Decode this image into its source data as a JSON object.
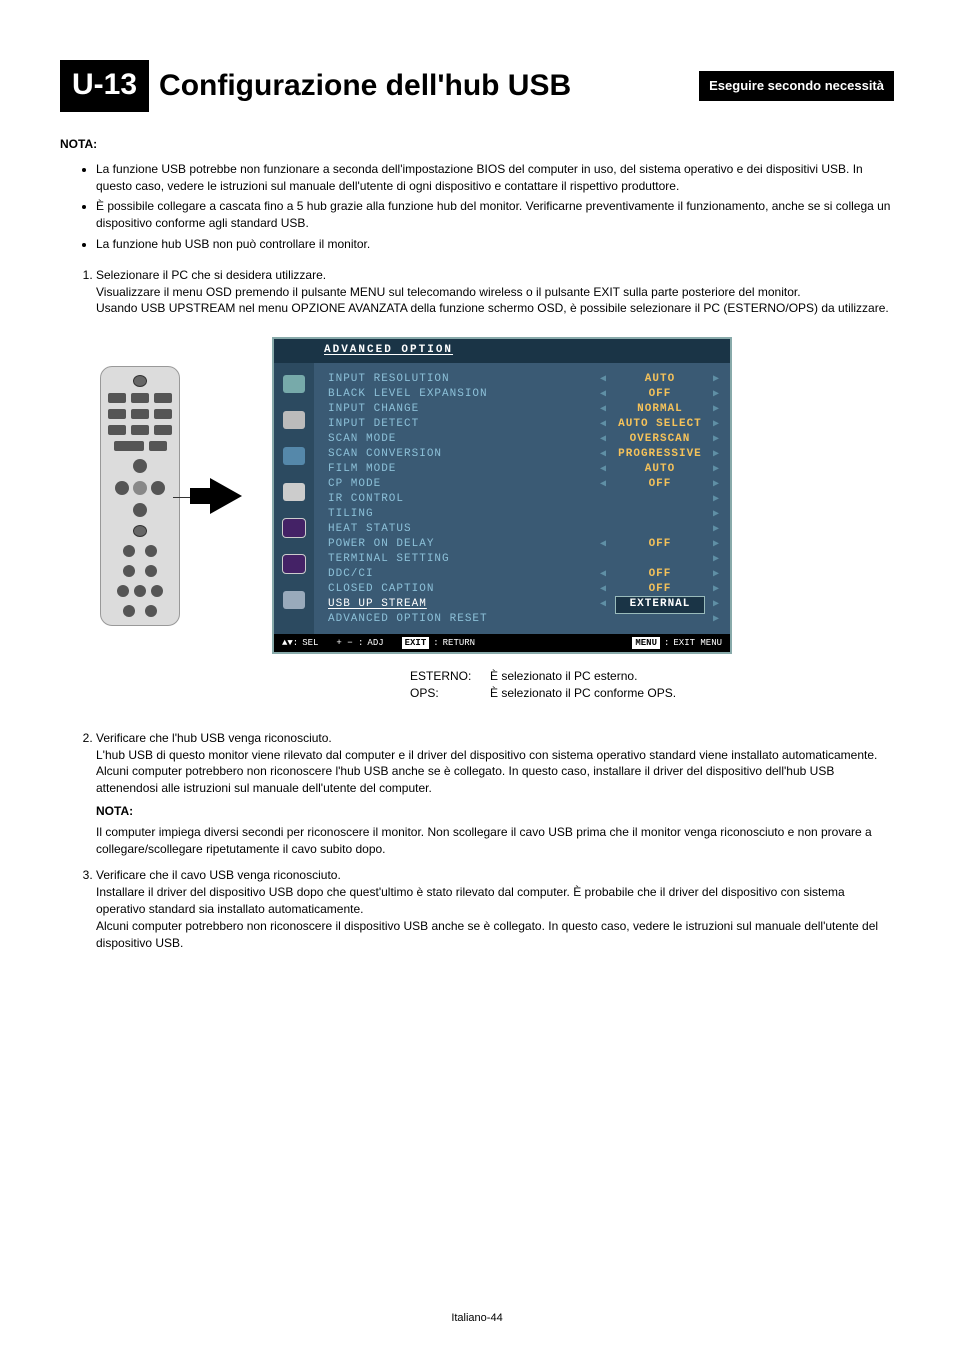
{
  "header": {
    "badge": "U-13",
    "title": "Configurazione dell'hub USB",
    "exec_note": "Eseguire secondo necessità"
  },
  "nota_label": "NOTA:",
  "top_notes": [
    "La funzione USB potrebbe non funzionare a seconda dell'impostazione BIOS del computer in uso, del sistema operativo e dei dispositivi USB. In questo caso, vedere le istruzioni sul manuale dell'utente di ogni dispositivo e contattare il rispettivo produttore.",
    "È possibile collegare a cascata fino a 5 hub grazie alla funzione hub del monitor. Verificarne preventivamente il funzionamento, anche se si collega un dispositivo conforme agli standard USB.",
    "La funzione hub USB non può controllare il monitor."
  ],
  "step1": {
    "lead": "Selezionare il PC che si desidera utilizzare.",
    "p2": "Visualizzare il menu OSD premendo il pulsante MENU sul telecomando wireless o il pulsante EXIT sulla parte posteriore del monitor.",
    "p3": "Usando USB UPSTREAM nel menu OPZIONE AVANZATA della funzione schermo OSD, è possibile selezionare il PC (ESTERNO/OPS) da utilizzare."
  },
  "osd": {
    "title": "ADVANCED OPTION",
    "rows": [
      {
        "label": "INPUT RESOLUTION",
        "value": "AUTO",
        "arrows": true
      },
      {
        "label": "BLACK LEVEL EXPANSION",
        "value": "OFF",
        "arrows": true
      },
      {
        "label": "INPUT CHANGE",
        "value": "NORMAL",
        "arrows": true
      },
      {
        "label": "INPUT DETECT",
        "value": "AUTO SELECT",
        "arrows": true
      },
      {
        "label": "SCAN MODE",
        "value": "OVERSCAN",
        "arrows": true
      },
      {
        "label": "SCAN CONVERSION",
        "value": "PROGRESSIVE",
        "arrows": true
      },
      {
        "label": "FILM MODE",
        "value": "AUTO",
        "arrows": true
      },
      {
        "label": "CP MODE",
        "value": "OFF",
        "arrows": true
      },
      {
        "label": "IR CONTROL",
        "value": "",
        "arrows": "right"
      },
      {
        "label": "TILING",
        "value": "",
        "arrows": "right"
      },
      {
        "label": "HEAT STATUS",
        "value": "",
        "arrows": "right"
      },
      {
        "label": "POWER ON DELAY",
        "value": "OFF",
        "arrows": true
      },
      {
        "label": "TERMINAL SETTING",
        "value": "",
        "arrows": "right"
      },
      {
        "label": "DDC/CI",
        "value": "OFF",
        "arrows": true
      },
      {
        "label": "CLOSED CAPTION",
        "value": "OFF",
        "arrows": true
      },
      {
        "label": "USB UP STREAM",
        "value": "EXTERNAL",
        "arrows": true,
        "selected": true
      },
      {
        "label": "ADVANCED OPTION RESET",
        "value": "",
        "arrows": "right"
      }
    ],
    "footer": {
      "sel": "SEL",
      "adj": "ADJ",
      "exit_tag": "EXIT",
      "return": "RETURN",
      "menu_tag": "MENU",
      "exit_menu": "EXIT MENU"
    },
    "colors": {
      "panel_bg": "#3a5a74",
      "header_bg": "#1a3446",
      "text_label": "#8cc0d8",
      "value_text": "#f5c25a",
      "footer_bg": "#000000"
    }
  },
  "legend": {
    "esterno_k": "ESTERNO:",
    "esterno_v": "È selezionato il PC esterno.",
    "ops_k": "OPS:",
    "ops_v": "È selezionato il PC conforme OPS."
  },
  "step2": {
    "lead": "Verificare che l'hub USB venga riconosciuto.",
    "p2": "L'hub USB di questo monitor viene rilevato dal computer e il driver del dispositivo con sistema operativo standard viene installato automaticamente. Alcuni computer potrebbero non riconoscere l'hub USB anche se è collegato. In questo caso, installare il driver del dispositivo dell'hub USB attenendosi alle istruzioni sul manuale dell'utente del computer.",
    "nota": "NOTA:",
    "p3": "Il computer impiega diversi secondi per riconoscere il monitor. Non scollegare il cavo USB prima che il monitor venga riconosciuto e non provare a collegare/scollegare ripetutamente il cavo subito dopo."
  },
  "step3": {
    "lead": "Verificare che il cavo USB venga riconosciuto.",
    "p2": "Installare il driver del dispositivo USB dopo che quest'ultimo è stato rilevato dal computer. È probabile che il driver del dispositivo con sistema operativo standard sia installato automaticamente.",
    "p3": "Alcuni computer potrebbero non riconoscere il dispositivo USB anche se è collegato. In questo caso, vedere le istruzioni sul manuale dell'utente del dispositivo USB."
  },
  "footer_page": "Italiano-44"
}
